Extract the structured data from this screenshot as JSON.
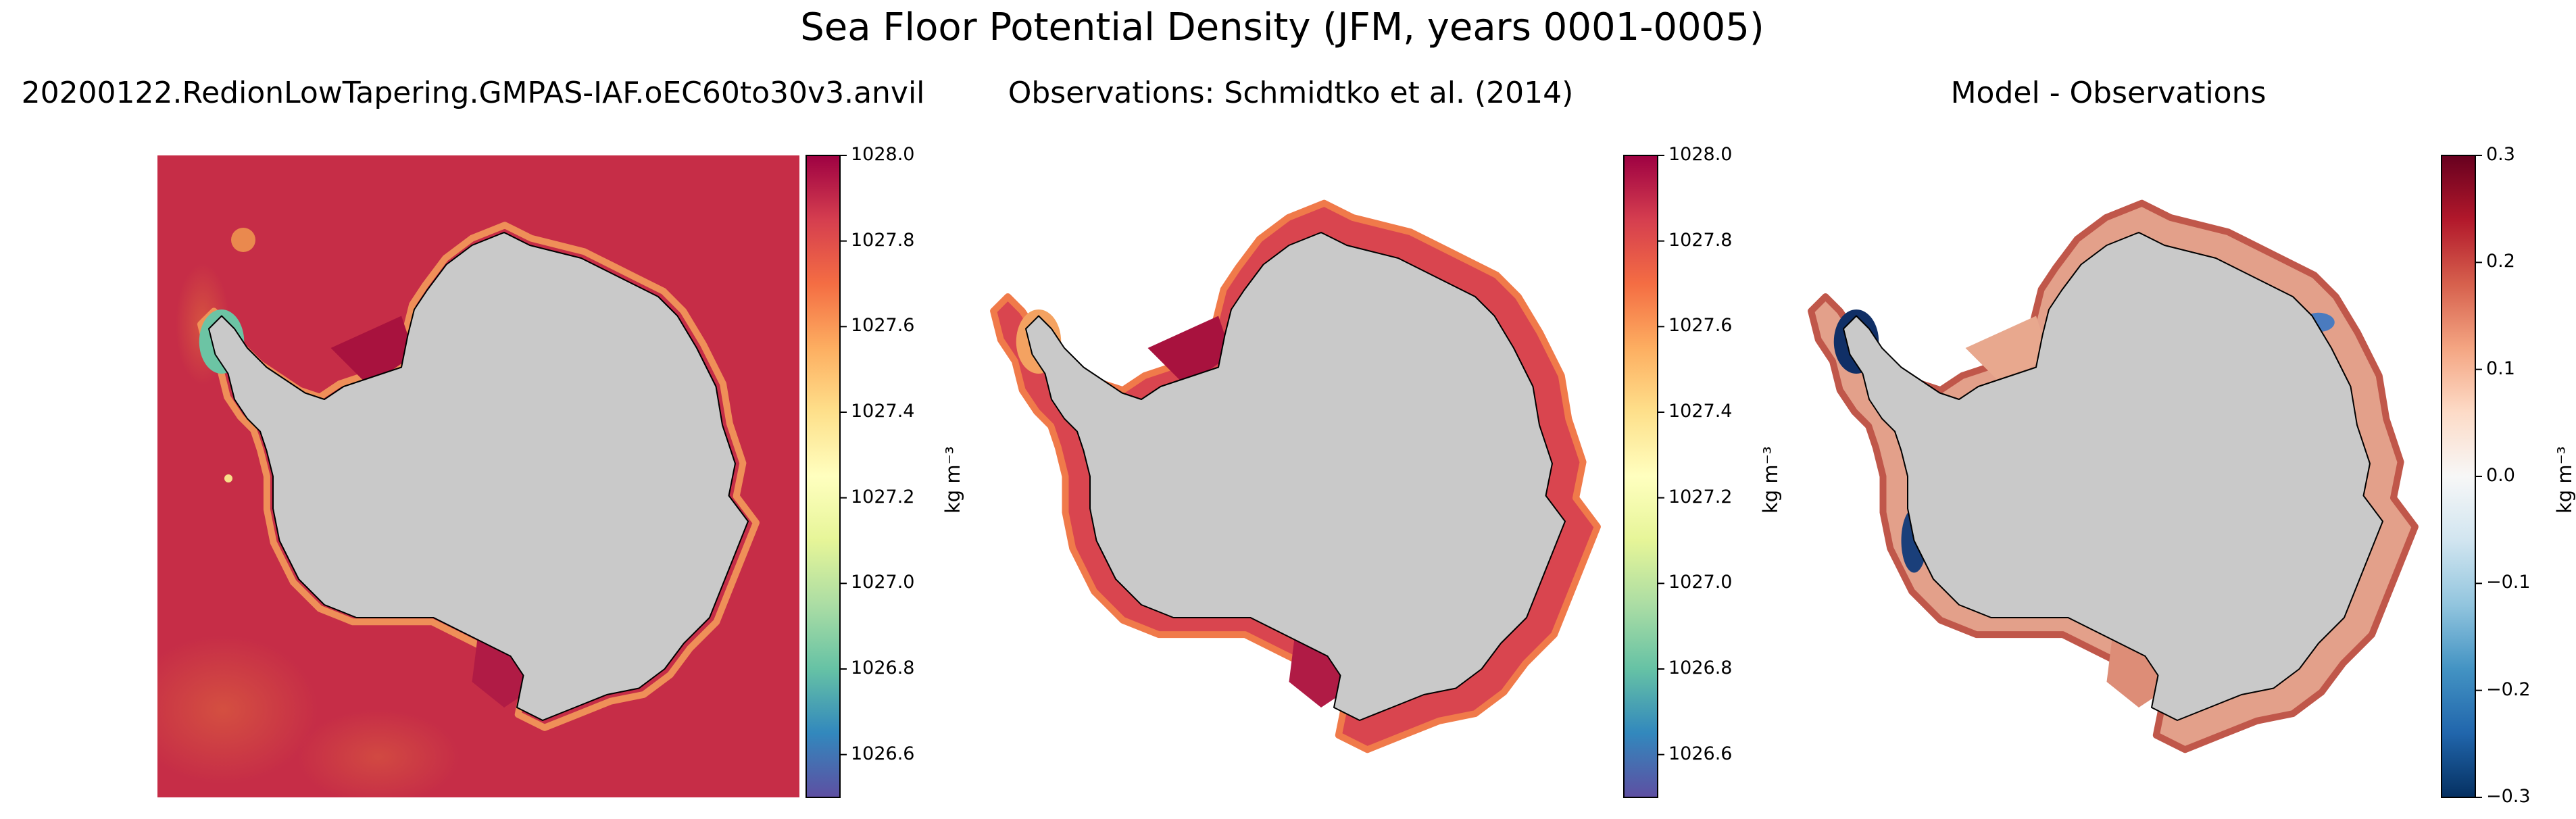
{
  "suptitle": "Sea Floor Potential Density (JFM, years 0001-0005)",
  "colors": {
    "background": "#ffffff",
    "land": "#c9c9c9",
    "coastline": "#000000",
    "model_ocean": "#c62d47",
    "spectral_ramp": [
      "#5e4fa2",
      "#3288bd",
      "#66c2a5",
      "#abdda4",
      "#e6f598",
      "#ffffbf",
      "#fee08b",
      "#fdae61",
      "#f46d43",
      "#d53e4f",
      "#9e0142"
    ],
    "diverging_ramp": [
      "#053061",
      "#2166ac",
      "#4393c3",
      "#92c5de",
      "#d1e5f0",
      "#f7f7f7",
      "#fddbc7",
      "#f4a582",
      "#d6604d",
      "#b2182b",
      "#67001f"
    ]
  },
  "chart_data": [
    {
      "type": "heatmap",
      "panel": "model",
      "title": "20200122.RedionLowTapering.GMPAS-IAF.oEC60to30v3.anvil",
      "colorbar": {
        "label": "kg m⁻³",
        "vmin": 1026.5,
        "vmax": 1028.0,
        "ticks": [
          1026.6,
          1026.8,
          1027.0,
          1027.2,
          1027.4,
          1027.6,
          1027.8,
          1028.0
        ],
        "tick_labels": [
          "1026.6",
          "1026.8",
          "1027.0",
          "1027.2",
          "1027.4",
          "1027.6",
          "1027.8",
          "1028.0"
        ],
        "colormap": "Spectral_r"
      },
      "description_values": {
        "open_ocean": 1027.85,
        "weddell_and_ross_shelves": 1027.95,
        "antarctic_peninsula_shelf": 1026.9
      }
    },
    {
      "type": "heatmap",
      "panel": "observations",
      "title": "Observations: Schmidtko et al. (2014)",
      "colorbar": {
        "label": "kg m⁻³",
        "vmin": 1026.5,
        "vmax": 1028.0,
        "ticks": [
          1026.6,
          1026.8,
          1027.0,
          1027.2,
          1027.4,
          1027.6,
          1027.8,
          1028.0
        ],
        "tick_labels": [
          "1026.6",
          "1026.8",
          "1027.0",
          "1027.2",
          "1027.4",
          "1027.6",
          "1027.8",
          "1028.0"
        ],
        "colormap": "Spectral_r"
      },
      "description_values": {
        "continental_shelf": 1027.75,
        "weddell_and_ross_shelves": 1027.95
      }
    },
    {
      "type": "heatmap",
      "panel": "bias",
      "title": "Model - Observations",
      "colorbar": {
        "label": "kg m⁻³",
        "vmin": -0.3,
        "vmax": 0.3,
        "ticks": [
          -0.3,
          -0.2,
          -0.1,
          0.0,
          0.1,
          0.2,
          0.3
        ],
        "tick_labels": [
          "−0.3",
          "−0.2",
          "−0.1",
          "0.0",
          "0.1",
          "0.2",
          "0.3"
        ],
        "colormap": "RdBu_r"
      },
      "description_values": {
        "typical_shelf_bias": 0.1,
        "peninsula_bias": -0.3
      }
    }
  ]
}
